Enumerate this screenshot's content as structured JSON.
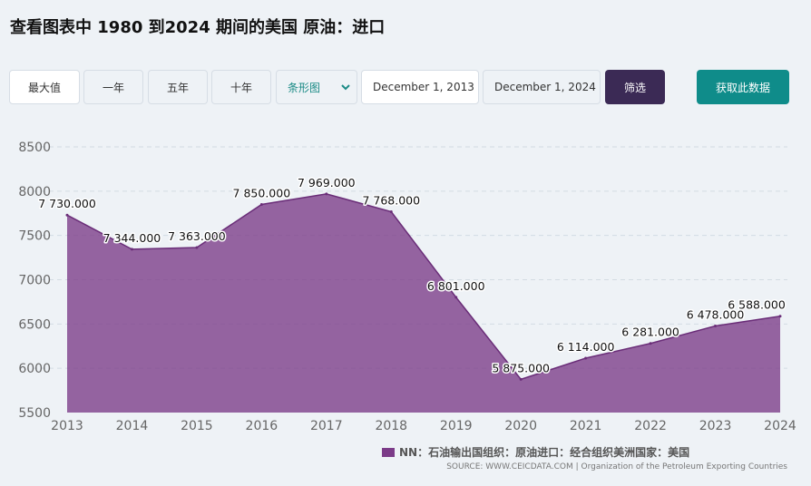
{
  "page_title": "查看图表中 1980 到2024 期间的美国 原油：进口",
  "controls": {
    "range_buttons": [
      "最大值",
      "一年",
      "五年",
      "十年"
    ],
    "chart_type": "条形图",
    "start_date": "December 1, 2013",
    "end_date": "December 1, 2024",
    "filter_label": "筛选",
    "get_data_label": "获取此数据"
  },
  "icons": {
    "dropdown": "chevron-down-icon"
  },
  "legend_label": "NN：石油输出国组织：原油进口：经合组织美洲国家：美国",
  "source_text": "SOURCE: WWW.CEICDATA.COM | Organization of the Petroleum Exporting Countries",
  "colors": {
    "area": "#7b3b88",
    "line": "#6a2d78",
    "filter_button": "#3b2a55",
    "get_button": "#0f8c8a"
  },
  "chart_data": {
    "type": "area",
    "x": [
      "2013",
      "2014",
      "2015",
      "2016",
      "2017",
      "2018",
      "2019",
      "2020",
      "2021",
      "2022",
      "2023",
      "2024"
    ],
    "values": [
      7730,
      7344,
      7363,
      7850,
      7969,
      7768,
      6801,
      5875,
      6114,
      6281,
      6478,
      6588
    ],
    "data_labels": [
      "7 730.000",
      "7 344.000",
      "7 363.000",
      "7 850.000",
      "7 969.000",
      "7 768.000",
      "6 801.000",
      "5 875.000",
      "6 114.000",
      "6 281.000",
      "6 478.000",
      "6 588.000"
    ],
    "y_ticks": [
      "5500",
      "6000",
      "6500",
      "7000",
      "7500",
      "8000",
      "8500"
    ],
    "ylim": [
      5500,
      8500
    ],
    "grid": true,
    "title": "",
    "xlabel": "",
    "ylabel": "",
    "legend": "bottom"
  }
}
